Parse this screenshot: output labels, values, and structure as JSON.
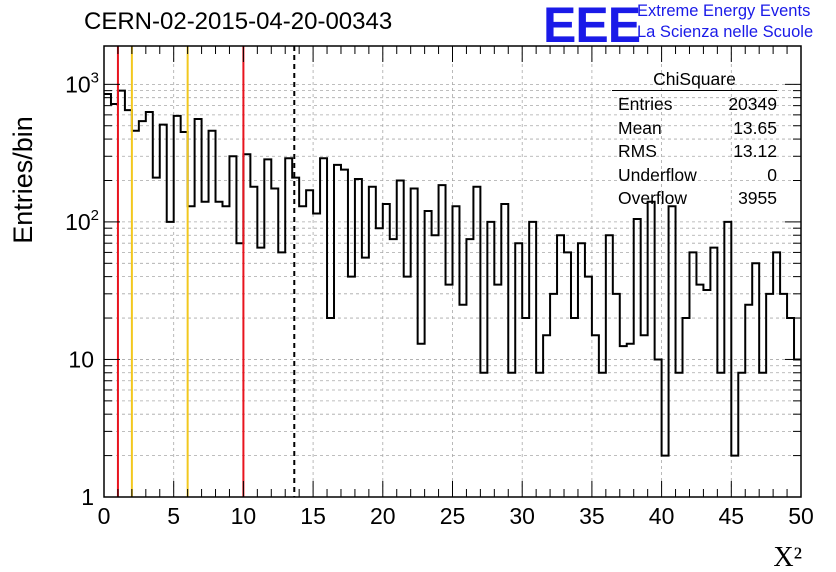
{
  "title": "CERN-02-2015-04-20-00343",
  "logo": {
    "letters": "EEE",
    "line1": "Extreme Energy Events",
    "line2": "La Scienza nelle Scuole",
    "color": "#1a1ae8"
  },
  "stats": {
    "name": "ChiSquare",
    "rows": [
      {
        "key": "Entries",
        "value": "20349"
      },
      {
        "key": "Mean",
        "value": "13.65"
      },
      {
        "key": "RMS",
        "value": "13.12"
      },
      {
        "key": "Underflow",
        "value": "0"
      },
      {
        "key": "Overflow",
        "value": "3955"
      }
    ]
  },
  "chart_data": {
    "type": "histogram",
    "ylabel": "Entries/bin",
    "xlabel": "X²",
    "xlim": [
      0,
      50
    ],
    "ylim": [
      1,
      1900
    ],
    "yscale": "log",
    "grid": true,
    "bin_width": 0.5,
    "x_ticks": [
      0,
      5,
      10,
      15,
      20,
      25,
      30,
      35,
      40,
      45,
      50
    ],
    "y_ticks": [
      {
        "value": 1,
        "label": "1"
      },
      {
        "value": 10,
        "label": "10"
      },
      {
        "value": 100,
        "label": "10",
        "exp": "2"
      },
      {
        "value": 1000,
        "label": "10",
        "exp": "3"
      }
    ],
    "values": [
      850,
      720,
      900,
      650,
      460,
      540,
      630,
      210,
      510,
      100,
      590,
      450,
      130,
      560,
      140,
      460,
      140,
      130,
      300,
      70,
      310,
      180,
      65,
      285,
      175,
      60,
      290,
      210,
      130,
      170,
      115,
      290,
      20,
      260,
      240,
      40,
      205,
      55,
      180,
      90,
      135,
      75,
      200,
      40,
      175,
      13,
      120,
      80,
      185,
      35,
      130,
      25,
      75,
      180,
      8,
      100,
      35,
      135,
      8,
      70,
      20,
      100,
      8,
      15,
      30,
      80,
      60,
      20,
      70,
      40,
      15,
      8,
      80,
      30,
      12.5,
      13,
      105,
      15,
      140,
      10,
      2,
      130,
      8,
      20,
      60,
      35,
      32,
      65,
      8,
      100,
      2,
      8,
      25,
      50,
      8,
      30,
      60,
      30,
      20,
      10
    ],
    "vertical_lines": [
      {
        "x": 1,
        "color": "#e8141e",
        "style": "solid"
      },
      {
        "x": 2,
        "color": "#f2c81e",
        "style": "solid"
      },
      {
        "x": 6,
        "color": "#f2c81e",
        "style": "solid"
      },
      {
        "x": 10,
        "color": "#e8141e",
        "style": "solid"
      },
      {
        "x": 13.65,
        "color": "#000000",
        "style": "dashed"
      }
    ]
  }
}
